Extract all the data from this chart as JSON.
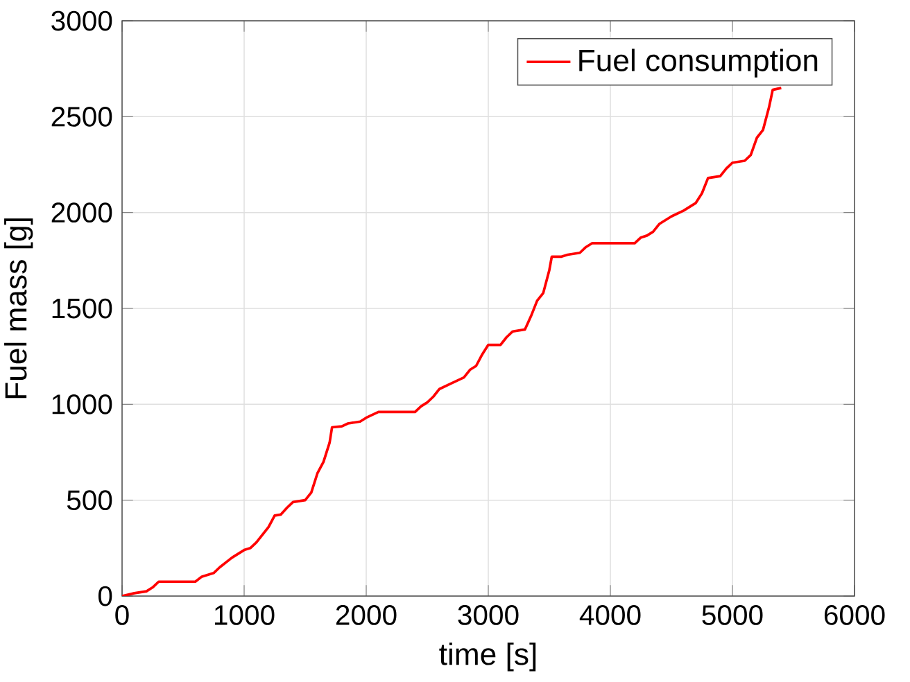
{
  "chart_data": {
    "type": "line",
    "xlabel": "time [s]",
    "ylabel": "Fuel mass [g]",
    "x": [
      0,
      100,
      200,
      250,
      300,
      600,
      650,
      750,
      800,
      900,
      1000,
      1050,
      1100,
      1150,
      1200,
      1250,
      1300,
      1350,
      1400,
      1500,
      1550,
      1600,
      1650,
      1700,
      1720,
      1800,
      1850,
      1950,
      2000,
      2100,
      2400,
      2450,
      2500,
      2550,
      2600,
      2700,
      2800,
      2850,
      2900,
      2950,
      3000,
      3100,
      3150,
      3200,
      3300,
      3350,
      3400,
      3450,
      3500,
      3520,
      3600,
      3650,
      3750,
      3800,
      3850,
      4200,
      4250,
      4300,
      4350,
      4400,
      4500,
      4600,
      4700,
      4750,
      4800,
      4900,
      4950,
      5000,
      5100,
      5150,
      5200,
      5250,
      5300,
      5330,
      5400
    ],
    "series": [
      {
        "name": "Fuel consumption",
        "color": "#ff0000",
        "values": [
          0,
          15,
          25,
          45,
          75,
          75,
          100,
          120,
          150,
          200,
          240,
          250,
          280,
          320,
          360,
          420,
          425,
          460,
          490,
          500,
          540,
          640,
          700,
          800,
          880,
          885,
          900,
          910,
          930,
          960,
          960,
          990,
          1010,
          1040,
          1080,
          1110,
          1140,
          1180,
          1200,
          1260,
          1310,
          1310,
          1350,
          1380,
          1390,
          1460,
          1540,
          1580,
          1700,
          1770,
          1770,
          1780,
          1790,
          1820,
          1840,
          1840,
          1870,
          1880,
          1900,
          1940,
          1980,
          2010,
          2050,
          2100,
          2180,
          2190,
          2230,
          2260,
          2270,
          2300,
          2390,
          2430,
          2550,
          2640,
          2650
        ]
      }
    ],
    "xlim": [
      0,
      6000
    ],
    "ylim": [
      0,
      3000
    ],
    "xticks": [
      0,
      1000,
      2000,
      3000,
      4000,
      5000,
      6000
    ],
    "yticks": [
      0,
      500,
      1000,
      1500,
      2000,
      2500,
      3000
    ],
    "grid": true,
    "legend": "top right",
    "marker": "none",
    "line_style": "solid"
  }
}
